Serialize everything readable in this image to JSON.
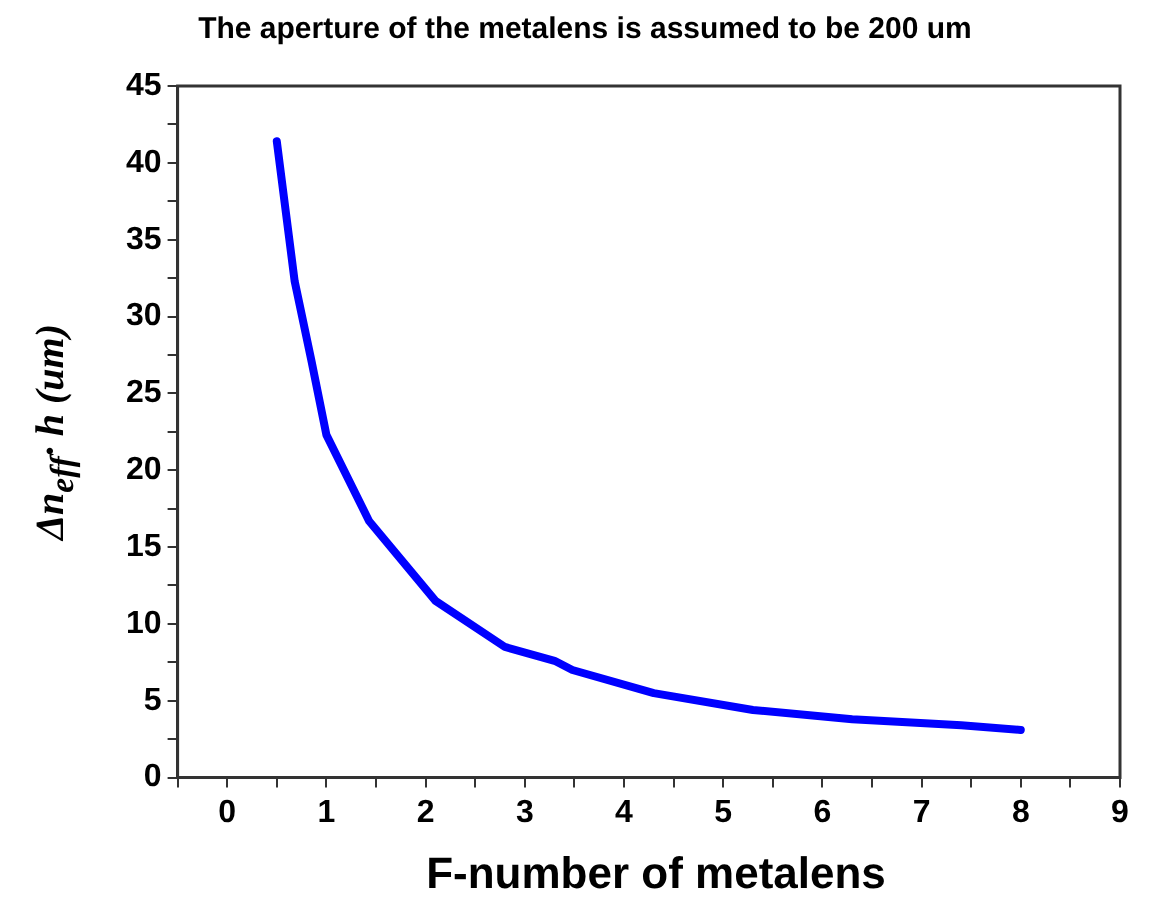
{
  "chart_data": {
    "type": "line",
    "title": "The aperture of the metalens is assumed to be 200 um",
    "xlabel": "F-number of metalens",
    "ylabel": "Δn$_{eff}$· h (um)",
    "x": [
      0.5,
      0.68,
      0.85,
      1.0,
      1.43,
      2.1,
      2.8,
      3.3,
      3.48,
      4.3,
      5.3,
      6.3,
      7.4,
      8.0
    ],
    "series": [
      {
        "color": "#0000ff",
        "values": [
          41.4,
          32.3,
          27.1,
          22.3,
          16.7,
          11.5,
          8.5,
          7.6,
          7.0,
          5.5,
          4.4,
          3.8,
          3.4,
          3.1
        ]
      }
    ],
    "xlim": [
      -0.5,
      9
    ],
    "xticks": [
      {
        "value": -0.5,
        "label": null
      },
      0,
      {
        "value": 0.5,
        "label": null
      },
      1,
      {
        "value": 1.5,
        "label": null
      },
      2,
      {
        "value": 2.5,
        "label": null
      },
      3,
      {
        "value": 3.5,
        "label": null
      },
      4,
      {
        "value": 4.5,
        "label": null
      },
      5,
      {
        "value": 5.5,
        "label": null
      },
      6,
      {
        "value": 6.5,
        "label": null
      },
      7,
      {
        "value": 7.5,
        "label": null
      },
      8,
      {
        "value": 8.5,
        "label": null
      },
      9
    ],
    "ylim": [
      0,
      45
    ],
    "yticks": [
      0,
      {
        "value": 2.5,
        "label": null
      },
      5,
      {
        "value": 7.5,
        "label": null
      },
      10,
      {
        "value": 12.5,
        "label": null
      },
      15,
      {
        "value": 17.5,
        "label": null
      },
      20,
      {
        "value": 22.5,
        "label": null
      },
      25,
      {
        "value": 27.5,
        "label": null
      },
      30,
      {
        "value": 32.5,
        "label": null
      },
      35,
      {
        "value": 37.5,
        "label": null
      },
      40,
      {
        "value": 42.5,
        "label": null
      },
      45
    ],
    "grid": false,
    "legend": false,
    "marker": "none",
    "line_style": "solid"
  }
}
